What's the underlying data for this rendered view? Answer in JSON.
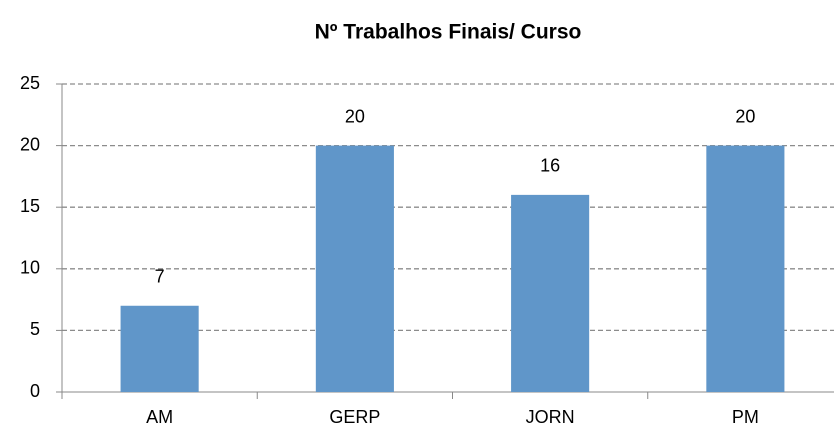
{
  "chart_data": {
    "type": "bar",
    "title": "Nº Trabalhos Finais/ Curso",
    "categories": [
      "AM",
      "GERP",
      "JORN",
      "PM"
    ],
    "values": [
      7,
      20,
      16,
      20
    ],
    "color": "#6096c9",
    "ylim": [
      0,
      25
    ],
    "yticks": [
      0,
      5,
      10,
      15,
      20,
      25
    ],
    "grid": true
  }
}
